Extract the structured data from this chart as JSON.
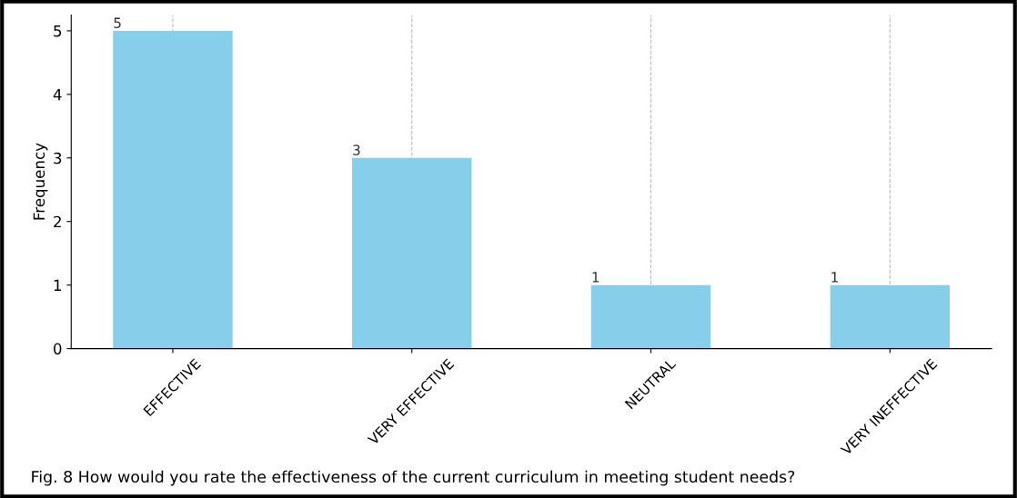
{
  "chart_data": {
    "type": "bar",
    "ylabel": "Frequency",
    "categories": [
      "EFFECTIVE",
      "VERY EFFECTIVE",
      "NEUTRAL",
      "VERY INEFFECTIVE"
    ],
    "values": [
      5,
      3,
      1,
      1
    ],
    "color": "#87ceeb",
    "ylim": [
      0,
      5.25
    ],
    "yticks": [
      0,
      1,
      2,
      3,
      4,
      5
    ],
    "grid": "x",
    "data_labels": true,
    "annotations": [
      "Fig. 8 How would you rate the effectiveness of the current curriculum in meeting student needs?"
    ]
  }
}
